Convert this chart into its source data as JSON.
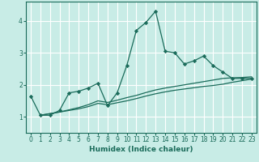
{
  "xlabel": "Humidex (Indice chaleur)",
  "bg_color": "#c8ece6",
  "grid_color": "#ffffff",
  "line_color": "#1a6b5a",
  "xlim": [
    -0.5,
    23.5
  ],
  "ylim": [
    0.5,
    4.6
  ],
  "yticks": [
    1,
    2,
    3,
    4
  ],
  "xticks": [
    0,
    1,
    2,
    3,
    4,
    5,
    6,
    7,
    8,
    9,
    10,
    11,
    12,
    13,
    14,
    15,
    16,
    17,
    18,
    19,
    20,
    21,
    22,
    23
  ],
  "series1_x": [
    0,
    1,
    2,
    3,
    4,
    5,
    6,
    7,
    8,
    9,
    10,
    11,
    12,
    13,
    14,
    15,
    16,
    17,
    18,
    19,
    20,
    21,
    22,
    23
  ],
  "series1_y": [
    1.65,
    1.05,
    1.05,
    1.2,
    1.75,
    1.8,
    1.9,
    2.05,
    1.35,
    1.75,
    2.6,
    3.7,
    3.95,
    4.3,
    3.05,
    3.0,
    2.65,
    2.75,
    2.9,
    2.6,
    2.4,
    2.2,
    2.2,
    2.2
  ],
  "series2_x": [
    1,
    2,
    3,
    4,
    5,
    6,
    7,
    8,
    9,
    10,
    11,
    12,
    13,
    14,
    15,
    16,
    17,
    18,
    19,
    20,
    21,
    22,
    23
  ],
  "series2_y": [
    1.05,
    1.1,
    1.15,
    1.2,
    1.25,
    1.32,
    1.42,
    1.38,
    1.44,
    1.5,
    1.57,
    1.65,
    1.72,
    1.78,
    1.83,
    1.87,
    1.91,
    1.95,
    1.98,
    2.02,
    2.08,
    2.13,
    2.18
  ],
  "series3_x": [
    1,
    2,
    3,
    4,
    5,
    6,
    7,
    8,
    9,
    10,
    11,
    12,
    13,
    14,
    15,
    16,
    17,
    18,
    19,
    20,
    21,
    22,
    23
  ],
  "series3_y": [
    1.05,
    1.1,
    1.15,
    1.22,
    1.29,
    1.38,
    1.5,
    1.45,
    1.52,
    1.6,
    1.67,
    1.76,
    1.84,
    1.9,
    1.95,
    2.0,
    2.05,
    2.1,
    2.15,
    2.2,
    2.22,
    2.23,
    2.25
  ]
}
